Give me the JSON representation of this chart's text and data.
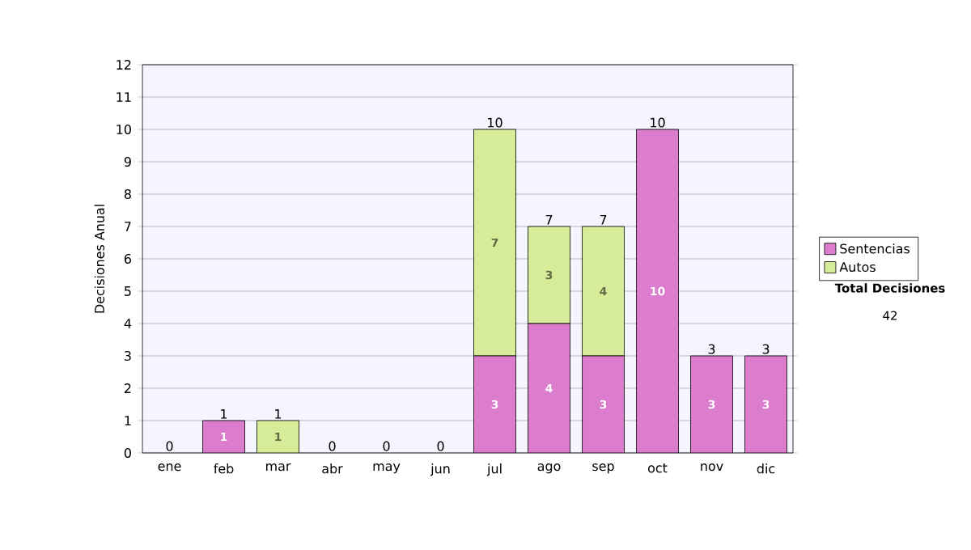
{
  "chart_data": {
    "type": "bar",
    "stacked": true,
    "ylabel": "Decisiones Anual",
    "categories": [
      "ene",
      "feb",
      "mar",
      "abr",
      "may",
      "jun",
      "jul",
      "ago",
      "sep",
      "oct",
      "nov",
      "dic"
    ],
    "series": [
      {
        "name": "Sentencias",
        "color": "#dc7ccc",
        "values": [
          0,
          1,
          0,
          0,
          0,
          0,
          3,
          4,
          3,
          10,
          3,
          3
        ],
        "value_labels": [
          null,
          "1",
          null,
          null,
          null,
          null,
          "3",
          "4",
          "3",
          "10",
          "3",
          "3"
        ]
      },
      {
        "name": "Autos",
        "color": "#d6ec98",
        "values": [
          0,
          0,
          1,
          0,
          0,
          0,
          7,
          3,
          4,
          0,
          0,
          0
        ],
        "value_labels": [
          null,
          null,
          "1",
          null,
          null,
          null,
          "7",
          "3",
          "4",
          null,
          null,
          null
        ]
      }
    ],
    "totals": [
      "0",
      "1",
      "1",
      "0",
      "0",
      "0",
      "10",
      "7",
      "7",
      "10",
      "3",
      "3"
    ],
    "ylim": [
      0,
      12
    ],
    "yticks": [
      0,
      1,
      2,
      3,
      4,
      5,
      6,
      7,
      8,
      9,
      10,
      11,
      12
    ],
    "grid": "y",
    "legend": "right",
    "annotations": [
      "Total Decisiones",
      "42"
    ]
  }
}
